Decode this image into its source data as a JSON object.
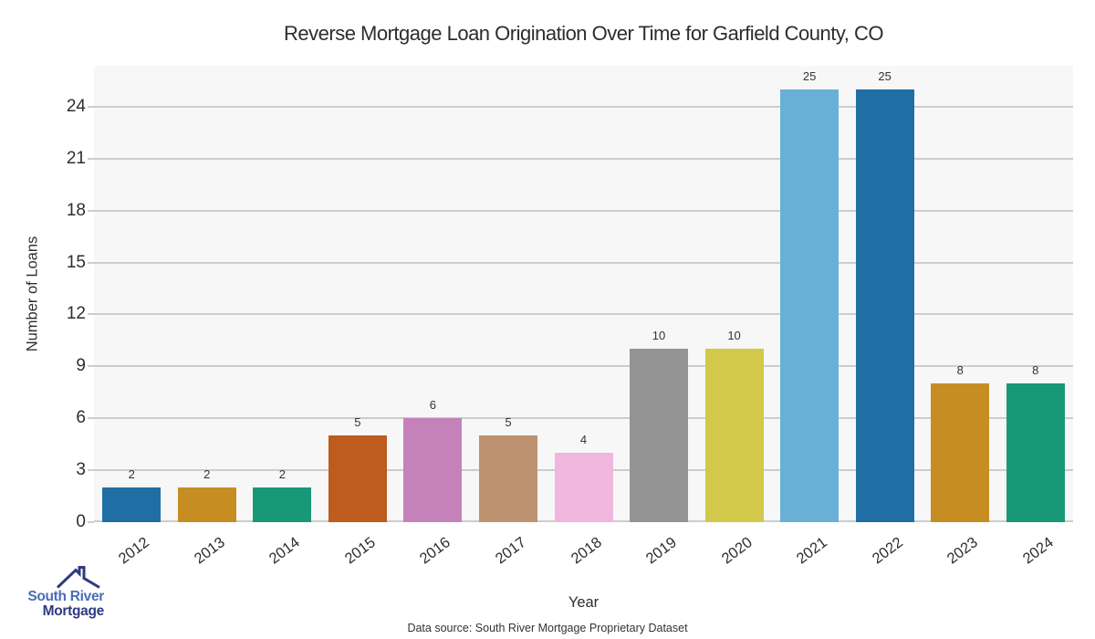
{
  "title": "Reverse Mortgage Loan Origination Over Time for Garfield County, CO",
  "chart_data": {
    "type": "bar",
    "categories": [
      "2012",
      "2013",
      "2014",
      "2015",
      "2016",
      "2017",
      "2018",
      "2019",
      "2020",
      "2021",
      "2022",
      "2023",
      "2024"
    ],
    "values": [
      2,
      2,
      2,
      5,
      6,
      5,
      4,
      10,
      10,
      25,
      25,
      8,
      8
    ],
    "bar_colors": [
      "#1f6fa5",
      "#c68e22",
      "#199878",
      "#bd5c1e",
      "#c581ba",
      "#bc9270",
      "#f0b6de",
      "#949494",
      "#d2c94a",
      "#69b0d7",
      "#1f6fa5",
      "#c68e22",
      "#199878"
    ],
    "title": "Reverse Mortgage Loan Origination Over Time for Garfield County, CO",
    "xlabel": "Year",
    "ylabel": "Number of Loans",
    "yticks": [
      0,
      3,
      6,
      9,
      12,
      15,
      18,
      21,
      24
    ],
    "ylim": [
      0,
      26.37
    ],
    "grid": true,
    "legend": false,
    "value_labels_shown": true,
    "plot_background": "#f7f7f7",
    "gridline_color": "#cdcdcd"
  },
  "footer": {
    "source": "Data source: South River Mortgage Proprietary Dataset"
  },
  "logo": {
    "line1": "South River",
    "line2": "Mortgage",
    "line1_color": "#4a6db8",
    "line2_color": "#2f3a82",
    "roof_color": "#2e3a80"
  }
}
